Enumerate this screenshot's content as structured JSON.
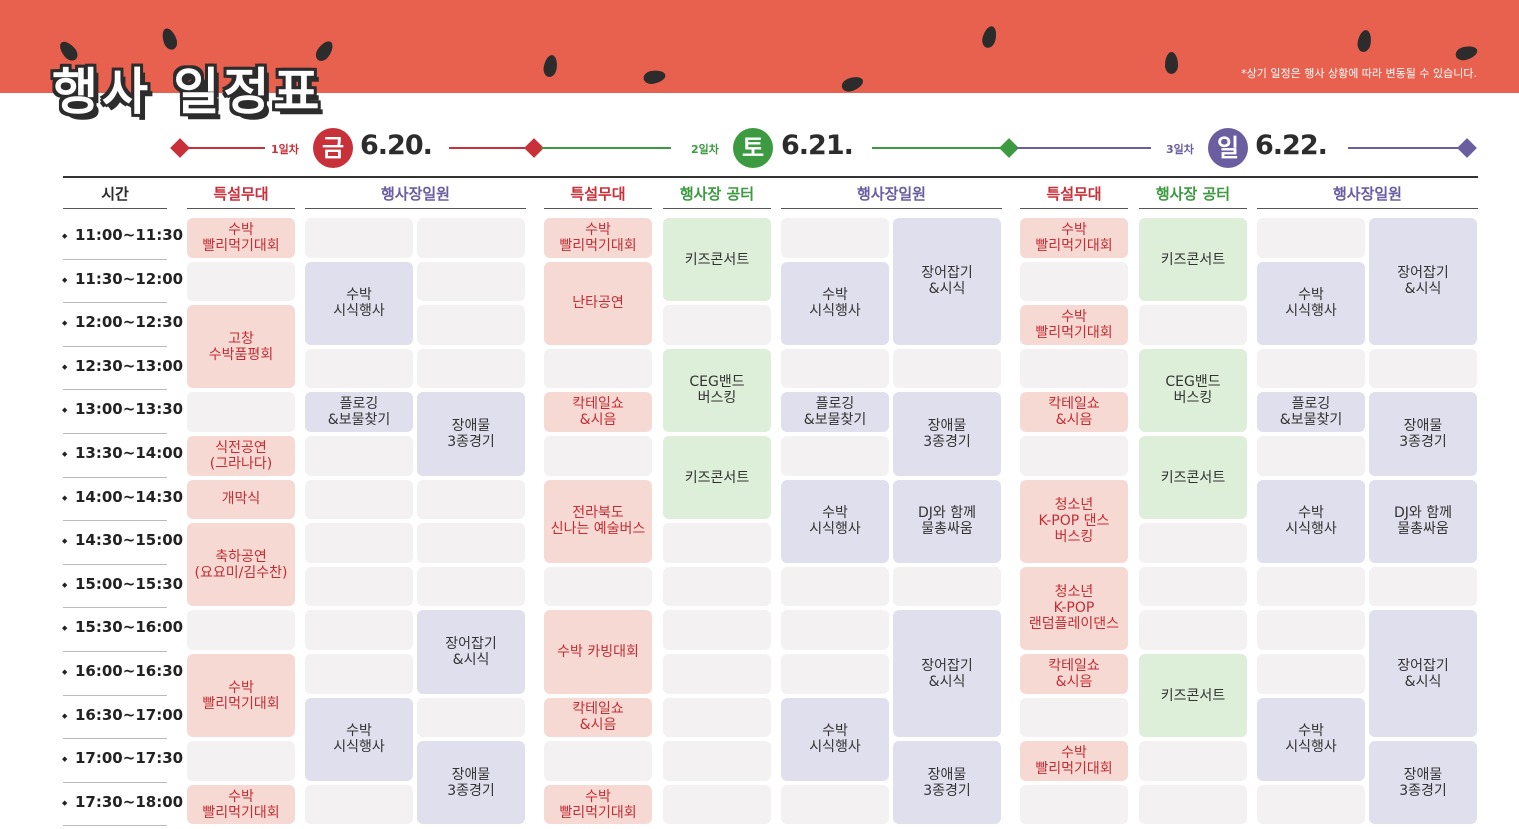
{
  "title": "행사 일정표",
  "notice": "*상기 일정은 행사 상황에 따라 변동될 수 있습니다.",
  "days": [
    {
      "label": "1일차",
      "weekday": "금",
      "date": "6.20.",
      "color": "#c8303a"
    },
    {
      "label": "2일차",
      "weekday": "토",
      "date": "6.21.",
      "color": "#3c9a41"
    },
    {
      "label": "3일차",
      "weekday": "일",
      "date": "6.22.",
      "color": "#6b5ea0"
    }
  ],
  "headers": {
    "time": "시간",
    "d1_stage": "특설무대",
    "d1_venue": "행사장일원",
    "d2_stage": "특설무대",
    "d2_park": "행사장 공터",
    "d2_venue": "행사장일원",
    "d3_stage": "특설무대",
    "d3_park": "행사장 공터",
    "d3_venue": "행사장일원"
  },
  "times": [
    "11:00~11:30",
    "11:30~12:00",
    "12:00~12:30",
    "12:30~13:00",
    "13:00~13:30",
    "13:30~14:00",
    "14:00~14:30",
    "14:30~15:00",
    "15:00~15:30",
    "15:30~16:00",
    "16:00~16:30",
    "16:30~17:00",
    "17:00~17:30",
    "17:30~18:00"
  ],
  "events": {
    "watermelon_eating": "수박\n빨리먹기대회",
    "watermelon_tasting": "수박\n시식행사",
    "gochang_judging": "고창\n수박품평회",
    "plogging": "플로깅\n&보물찾기",
    "obstacle": "장애물\n3종경기",
    "pre_show": "식전공연\n(그라나다)",
    "opening": "개막식",
    "celebration": "축하공연\n(요요미/김수찬)",
    "eel_catch": "장어잡기\n&시식",
    "kids_concert": "키즈콘서트",
    "nanta": "난타공연",
    "ceg_band": "CEG밴드\n버스킹",
    "cocktail": "칵테일쇼\n&시음",
    "jeonbuk_bus": "전라북도\n신나는 예술버스",
    "carving": "수박 카빙대회",
    "dj_water": "DJ와 함께\n물총싸움",
    "youth_kpop_busking": "청소년\nK-POP 댄스\n버스킹",
    "youth_kpop_random": "청소년\nK-POP\n랜덤플레이댄스"
  }
}
